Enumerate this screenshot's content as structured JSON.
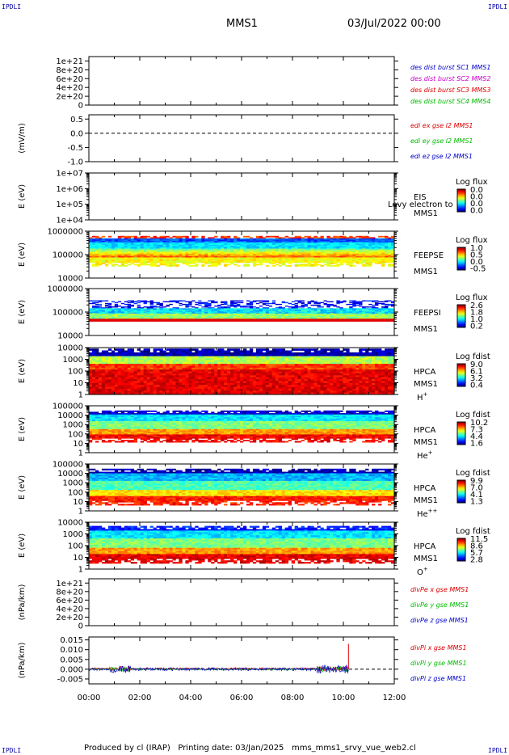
{
  "corner_text": "IPDLI",
  "header": {
    "spacecraft": "MMS1",
    "date": "03/Jul/2022 00:00"
  },
  "footer": {
    "produced_by": "Produced by cl (IRAP)",
    "printing_date": "Printing date: 03/Jan/2025",
    "config": "mms_mms1_srvy_vue_web2.cl"
  },
  "colors": {
    "frame": "#000000",
    "blue": "#0000cc",
    "red": "#dd0000",
    "green": "#00bb00",
    "magenta": "#cc00cc"
  },
  "time_axis": {
    "range_hours": [
      0,
      12
    ],
    "tick_labels": [
      "00:00",
      "02:00",
      "04:00",
      "06:00",
      "08:00",
      "10:00",
      "12:00"
    ]
  },
  "chart_data": [
    {
      "id": "des-dist",
      "type": "line",
      "ylabel": "",
      "yticks": [
        "1e+21",
        "8e+20",
        "6e+20",
        "4e+20",
        "2e+20",
        "0"
      ],
      "ylim": [
        0,
        1.1e+21
      ],
      "zero_line": true,
      "legend": [
        {
          "text": "des dist burst SC1 MMS1",
          "color": "#0000cc"
        },
        {
          "text": "des dist burst SC2 MMS2",
          "color": "#cc00cc"
        },
        {
          "text": "des dist burst SC3 MMS3",
          "color": "#dd0000"
        },
        {
          "text": "des dist burst SC4 MMS4",
          "color": "#00bb00"
        }
      ]
    },
    {
      "id": "edi-e",
      "type": "line",
      "ylabel": "(mV/m)",
      "yticks": [
        "0.5",
        "0.0",
        "-0.5",
        "-1.0"
      ],
      "ylim": [
        -1.0,
        0.65
      ],
      "zero_line": true,
      "legend": [
        {
          "text": "edi ex gse l2 MMS1",
          "color": "#dd0000"
        },
        {
          "text": "edi ey gse l2 MMS1",
          "color": "#00bb00"
        },
        {
          "text": "edi ez gse l2 MMS1",
          "color": "#0000cc"
        }
      ]
    },
    {
      "id": "eis",
      "type": "heatmap",
      "ylabel": "E (eV)",
      "yticks": [
        "1e+07",
        "1e+06",
        "1e+05",
        "1e+04"
      ],
      "yscale": "log",
      "right_labels": [
        "EIS",
        "MMS1"
      ],
      "overlay_text": "Levy electron to",
      "colorbar": {
        "title": "Log flux",
        "ticks": [
          "0.0",
          "0.0",
          "0.0",
          "0.0"
        ]
      }
    },
    {
      "id": "feeps-e",
      "type": "heatmap",
      "ylabel": "E (eV)",
      "yticks": [
        "1000000",
        "100000",
        "10000"
      ],
      "yscale": "log",
      "right_labels": [
        "FEEPSE",
        "MMS1"
      ],
      "colorbar": {
        "title": "Log flux",
        "ticks": [
          "1.0",
          "0.5",
          "0.0",
          "-0.5"
        ]
      }
    },
    {
      "id": "feeps-i",
      "type": "heatmap",
      "ylabel": "E (eV)",
      "yticks": [
        "1000000",
        "100000",
        "10000"
      ],
      "yscale": "log",
      "right_labels": [
        "FEEPSI",
        "MMS1"
      ],
      "colorbar": {
        "title": "Log flux",
        "ticks": [
          "2.6",
          "1.8",
          "1.0",
          "0.2"
        ]
      }
    },
    {
      "id": "hpca-h",
      "type": "heatmap",
      "ylabel": "E (eV)",
      "yticks": [
        "10000",
        "1000",
        "100",
        "10",
        "1"
      ],
      "yscale": "log",
      "right_labels": [
        "HPCA",
        "MMS1"
      ],
      "species": "H",
      "species_sup": "+",
      "colorbar": {
        "title": "Log fdist",
        "ticks": [
          "9.0",
          "6.1",
          "3.2",
          "0.4"
        ]
      }
    },
    {
      "id": "hpca-he",
      "type": "heatmap",
      "ylabel": "E (eV)",
      "yticks": [
        "100000",
        "10000",
        "1000",
        "100",
        "10",
        "1"
      ],
      "yscale": "log",
      "right_labels": [
        "HPCA",
        "MMS1"
      ],
      "species": "He",
      "species_sup": "+",
      "colorbar": {
        "title": "Log fdist",
        "ticks": [
          "10.2",
          "7.3",
          "4.4",
          "1.6"
        ]
      }
    },
    {
      "id": "hpca-he2",
      "type": "heatmap",
      "ylabel": "E (eV)",
      "yticks": [
        "100000",
        "10000",
        "1000",
        "100",
        "10",
        "1"
      ],
      "yscale": "log",
      "right_labels": [
        "HPCA",
        "MMS1"
      ],
      "species": "He",
      "species_sup": "++",
      "colorbar": {
        "title": "Log fdist",
        "ticks": [
          "9.9",
          "7.0",
          "4.1",
          "1.3"
        ]
      }
    },
    {
      "id": "hpca-o",
      "type": "heatmap",
      "ylabel": "E (eV)",
      "yticks": [
        "10000",
        "1000",
        "100",
        "10",
        "1"
      ],
      "yscale": "log",
      "right_labels": [
        "HPCA",
        "MMS1"
      ],
      "species": "O",
      "species_sup": "+",
      "colorbar": {
        "title": "Log fdist",
        "ticks": [
          "11.5",
          "8.6",
          "5.7",
          "2.8"
        ]
      }
    },
    {
      "id": "divpe",
      "type": "line",
      "ylabel": "(nPa/km)",
      "yticks": [
        "1e+21",
        "8e+20",
        "6e+20",
        "4e+20",
        "2e+20",
        "0"
      ],
      "ylim": [
        0,
        1.1e+21
      ],
      "zero_line": true,
      "legend": [
        {
          "text": "divPe x gse MMS1",
          "color": "#dd0000"
        },
        {
          "text": "divPe y gse MMS1",
          "color": "#00bb00"
        },
        {
          "text": "divPe z gse MMS1",
          "color": "#0000cc"
        }
      ]
    },
    {
      "id": "divpi",
      "type": "line",
      "ylabel": "(nPa/km)",
      "yticks": [
        "0.015",
        "0.010",
        "0.005",
        "0.000",
        "-0.005"
      ],
      "ylim": [
        -0.0075,
        0.0165
      ],
      "zero_line": true,
      "data_end_hours": 10.2,
      "legend": [
        {
          "text": "divPi x gse MMS1",
          "color": "#dd0000"
        },
        {
          "text": "divPi y gse MMS1",
          "color": "#00bb00"
        },
        {
          "text": "divPi z gse MMS1",
          "color": "#0000cc"
        }
      ]
    }
  ]
}
